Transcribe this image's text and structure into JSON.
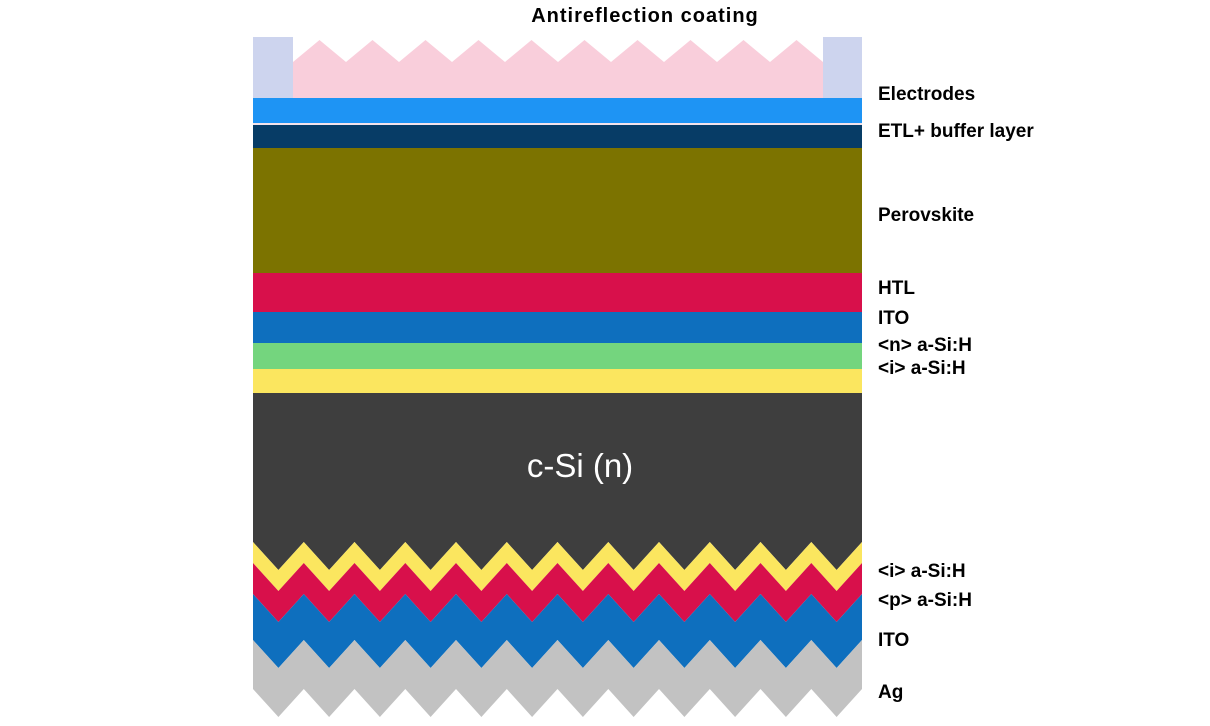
{
  "title": "Antireflection coating",
  "csi_label": "c-Si (n)",
  "labels": [
    "Electrodes",
    "ETL+ buffer layer",
    "Perovskite",
    "HTL",
    "ITO",
    "<n> a-Si:H",
    "<i> a-Si:H",
    "<i> a-Si:H",
    "<p> a-Si:H",
    "ITO",
    "Ag"
  ],
  "colors": {
    "antireflection_pink": "#F9CEDB",
    "electrode_lavender": "#CDD4EE",
    "electrode_blue": "#1E94F4",
    "separator_line": "#F5E3EA",
    "etl_navy": "#073C66",
    "perovskite_olive": "#7C7300",
    "htl_crimson": "#D8104B",
    "ito_blue": "#0E6FBE",
    "n_asih_green": "#74D57E",
    "i_asih_yellow": "#FBE65F",
    "csi_gray": "#3E3E3E",
    "ag_silver": "#C2C2C2",
    "label_text": "#000000",
    "csi_text": "#FFFFFF",
    "background": "#FFFFFF"
  }
}
